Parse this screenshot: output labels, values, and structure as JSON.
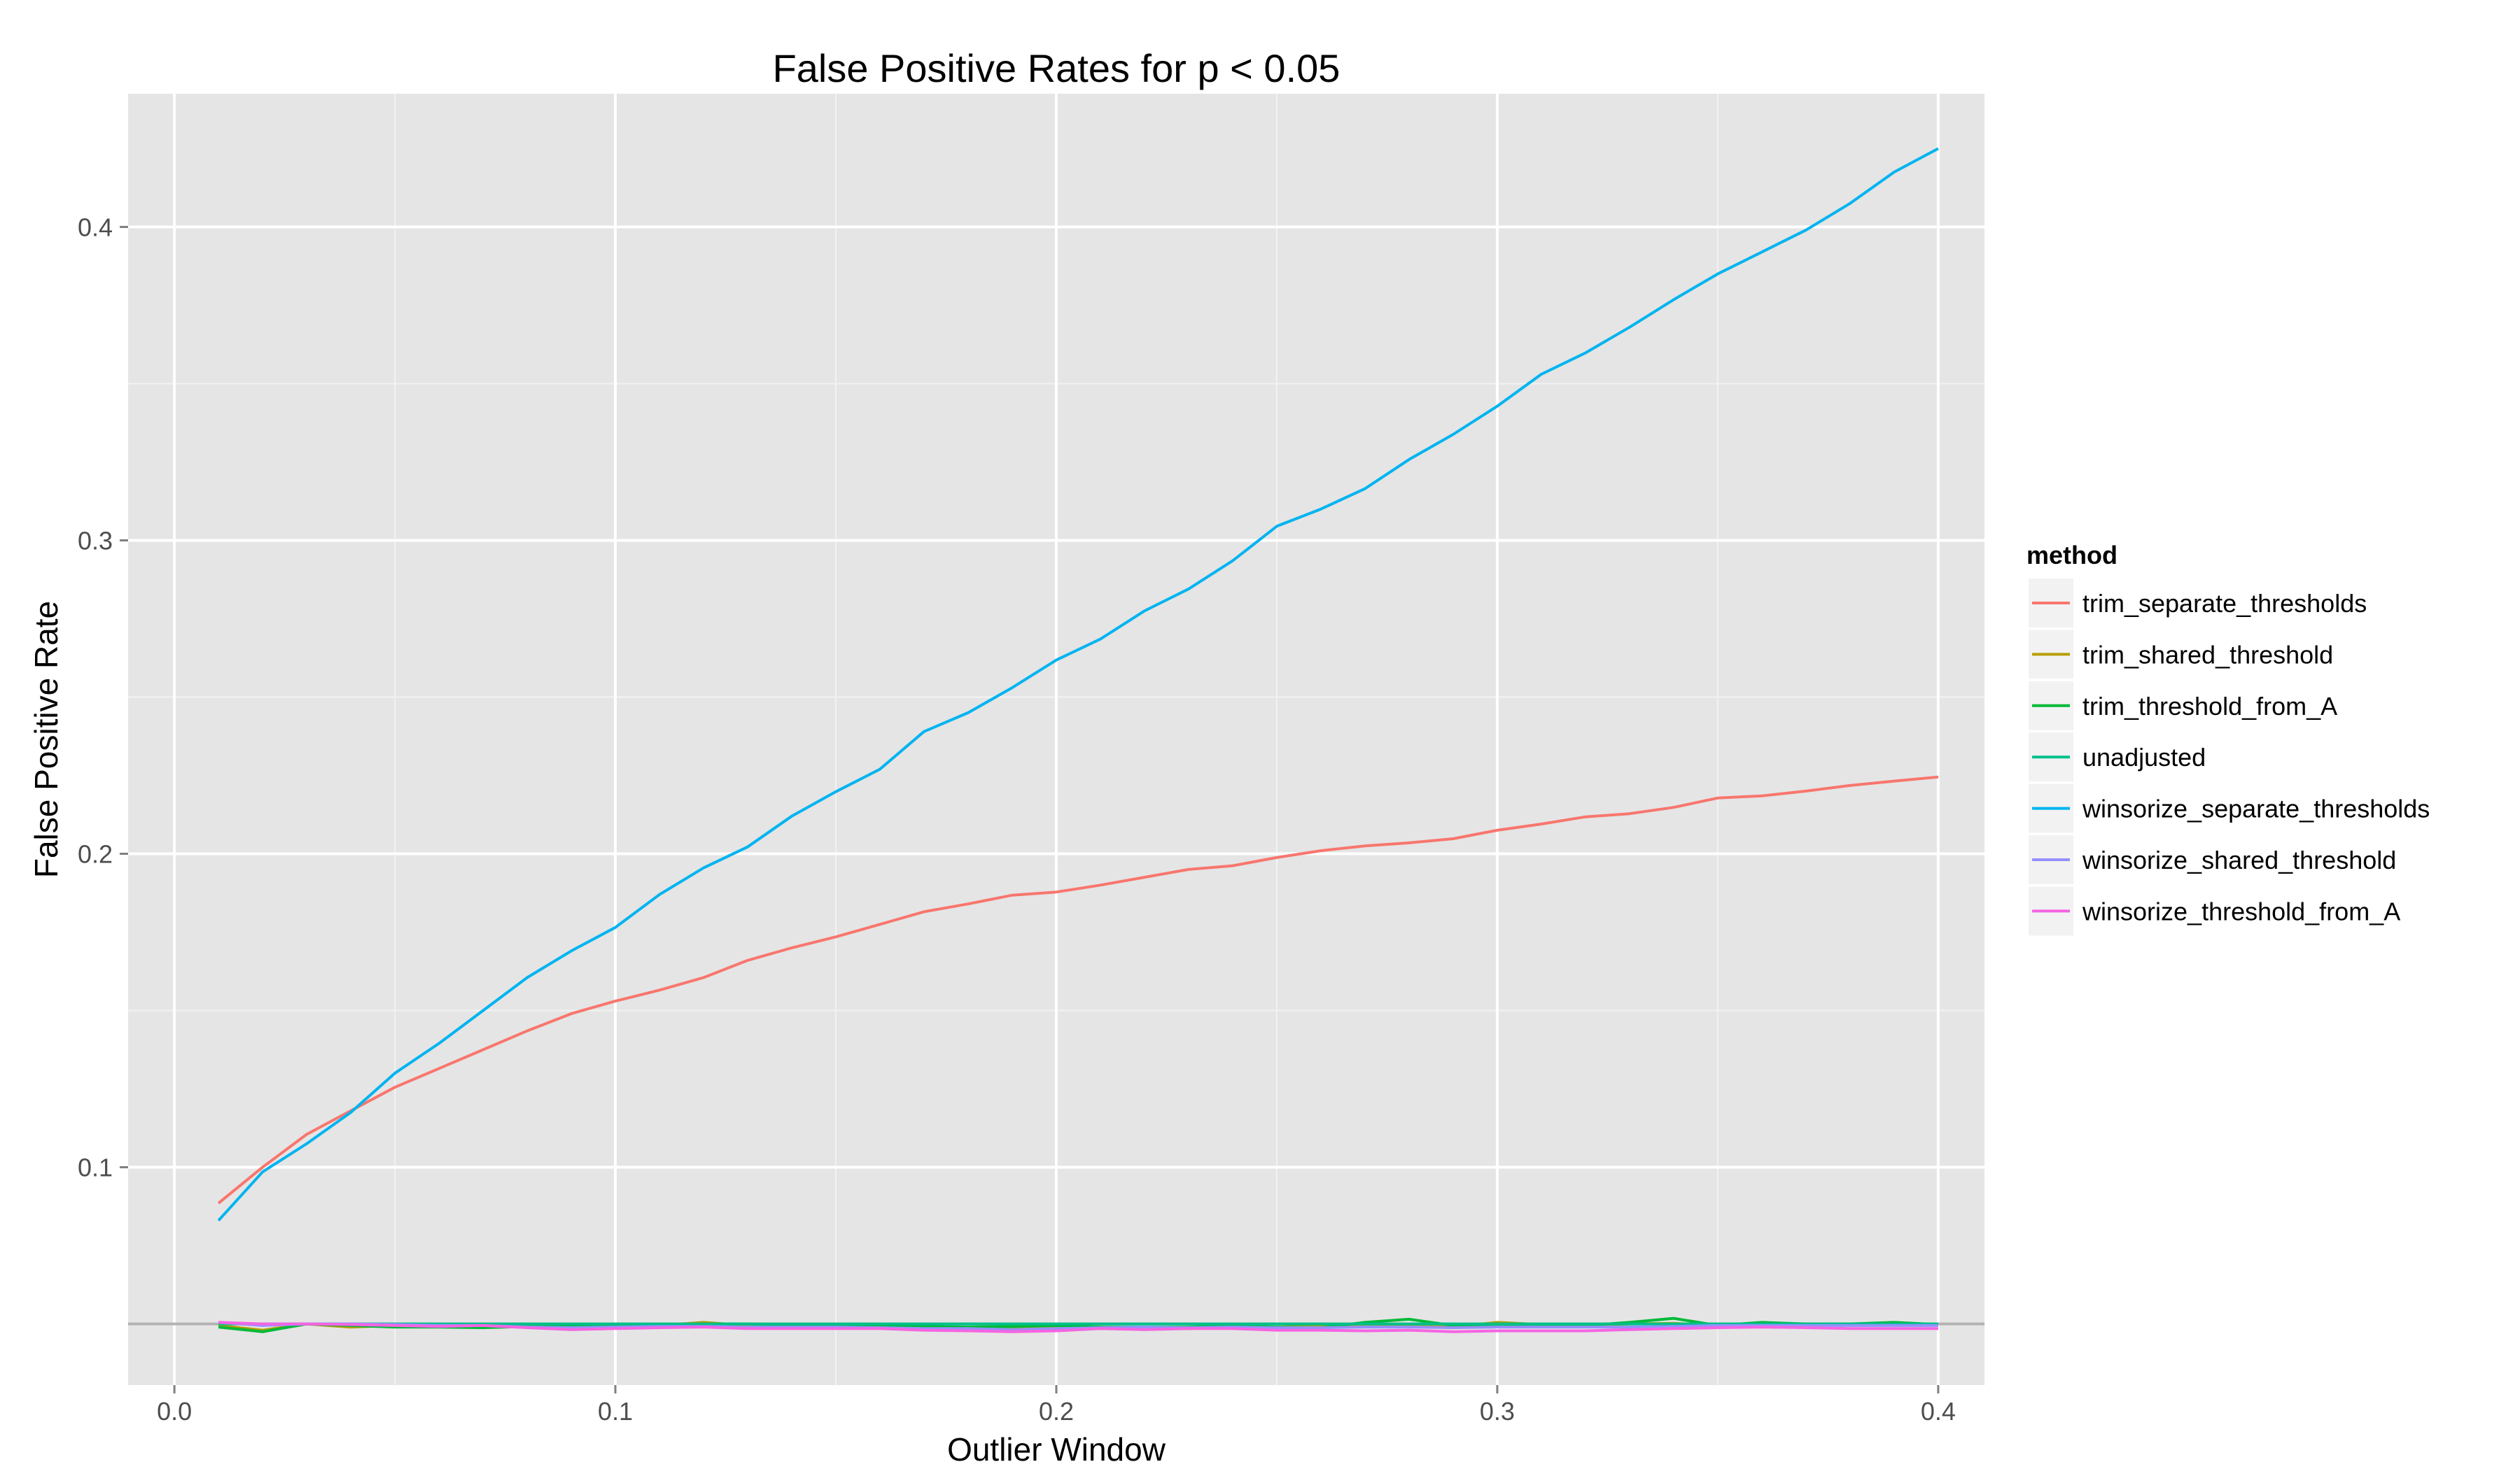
{
  "chart_data": {
    "type": "line",
    "title": "False Positive Rates for p < 0.05",
    "xlabel": "Outlier Window",
    "ylabel": "False Positive Rate",
    "xlim": [
      -0.0105,
      0.4105
    ],
    "ylim": [
      0.0305,
      0.4425
    ],
    "x_ticks": [
      0.0,
      0.1,
      0.2,
      0.3,
      0.4
    ],
    "x_tick_labels": [
      "0.0",
      "0.1",
      "0.2",
      "0.3",
      "0.4"
    ],
    "y_ticks": [
      0.1,
      0.2,
      0.3,
      0.4
    ],
    "y_tick_labels": [
      "0.1",
      "0.2",
      "0.3",
      "0.4"
    ],
    "reference_line": 0.05,
    "grid": true,
    "legend_title": "method",
    "legend_position": "right",
    "x": [
      0.01,
      0.02,
      0.03,
      0.04,
      0.05,
      0.06,
      0.07,
      0.08,
      0.09,
      0.1,
      0.11,
      0.12,
      0.13,
      0.14,
      0.15,
      0.16,
      0.17,
      0.18,
      0.19,
      0.2,
      0.21,
      0.22,
      0.23,
      0.24,
      0.25,
      0.26,
      0.27,
      0.28,
      0.29,
      0.3,
      0.31,
      0.32,
      0.33,
      0.34,
      0.35,
      0.36,
      0.37,
      0.38,
      0.39,
      0.4
    ],
    "series": [
      {
        "name": "trim_separate_thresholds",
        "color": "#F8766D",
        "values": [
          0.0885,
          0.1,
          0.1105,
          0.118,
          0.1255,
          0.1315,
          0.1375,
          0.1435,
          0.149,
          0.153,
          0.1565,
          0.1605,
          0.166,
          0.17,
          0.1735,
          0.1775,
          0.1815,
          0.184,
          0.1868,
          0.1878,
          0.19,
          0.1925,
          0.195,
          0.1962,
          0.1988,
          0.201,
          0.2025,
          0.2035,
          0.2048,
          0.2075,
          0.2095,
          0.2118,
          0.2128,
          0.2148,
          0.2178,
          0.2185,
          0.22,
          0.2218,
          0.2232,
          0.2245
        ]
      },
      {
        "name": "trim_shared_threshold",
        "color": "#B79F00",
        "values": [
          0.0495,
          0.048,
          0.05,
          0.049,
          0.0495,
          0.05,
          0.049,
          0.0495,
          0.049,
          0.0492,
          0.0495,
          0.0505,
          0.0495,
          0.0495,
          0.0492,
          0.049,
          0.049,
          0.0488,
          0.049,
          0.0492,
          0.049,
          0.0485,
          0.0485,
          0.049,
          0.049,
          0.0495,
          0.0495,
          0.0498,
          0.049,
          0.0505,
          0.0498,
          0.0495,
          0.05,
          0.0502,
          0.0495,
          0.0492,
          0.0495,
          0.0498,
          0.05,
          0.0498
        ]
      },
      {
        "name": "trim_threshold_from_A",
        "color": "#00BA38",
        "values": [
          0.049,
          0.0475,
          0.05,
          0.0495,
          0.049,
          0.049,
          0.0488,
          0.0492,
          0.0495,
          0.0495,
          0.0495,
          0.05,
          0.05,
          0.0495,
          0.0495,
          0.0495,
          0.0492,
          0.049,
          0.0492,
          0.0495,
          0.049,
          0.049,
          0.049,
          0.0495,
          0.049,
          0.0488,
          0.0505,
          0.0515,
          0.0495,
          0.0498,
          0.0498,
          0.0495,
          0.0505,
          0.0518,
          0.0495,
          0.0505,
          0.05,
          0.05,
          0.0505,
          0.0498
        ]
      },
      {
        "name": "unadjusted",
        "color": "#00C08B",
        "values": [
          0.05,
          0.05,
          0.05,
          0.05,
          0.05,
          0.05,
          0.05,
          0.05,
          0.05,
          0.05,
          0.05,
          0.05,
          0.05,
          0.05,
          0.05,
          0.05,
          0.05,
          0.05,
          0.05,
          0.05,
          0.05,
          0.05,
          0.05,
          0.05,
          0.05,
          0.05,
          0.05,
          0.05,
          0.05,
          0.05,
          0.05,
          0.05,
          0.05,
          0.05,
          0.05,
          0.05,
          0.05,
          0.05,
          0.05,
          0.05
        ]
      },
      {
        "name": "winsorize_separate_thresholds",
        "color": "#00B4F0",
        "values": [
          0.083,
          0.0985,
          0.1075,
          0.1175,
          0.13,
          0.1395,
          0.15,
          0.1605,
          0.169,
          0.1765,
          0.187,
          0.1955,
          0.2022,
          0.212,
          0.2198,
          0.227,
          0.239,
          0.245,
          0.253,
          0.2618,
          0.2685,
          0.2775,
          0.2845,
          0.2935,
          0.3045,
          0.31,
          0.3165,
          0.3258,
          0.3338,
          0.3428,
          0.353,
          0.3598,
          0.368,
          0.3768,
          0.385,
          0.392,
          0.399,
          0.4075,
          0.4175,
          0.425
        ]
      },
      {
        "name": "winsorize_shared_threshold",
        "color": "#9590FF",
        "values": [
          0.0505,
          0.0495,
          0.05,
          0.05,
          0.0498,
          0.0495,
          0.0495,
          0.049,
          0.0488,
          0.049,
          0.0492,
          0.0492,
          0.049,
          0.049,
          0.049,
          0.0488,
          0.0485,
          0.0485,
          0.0482,
          0.0485,
          0.0488,
          0.049,
          0.0488,
          0.049,
          0.0488,
          0.0488,
          0.049,
          0.049,
          0.0488,
          0.049,
          0.049,
          0.049,
          0.049,
          0.0492,
          0.0495,
          0.0495,
          0.0495,
          0.0495,
          0.0495,
          0.0495
        ]
      },
      {
        "name": "winsorize_threshold_from_A",
        "color": "#F564E3",
        "values": [
          0.0505,
          0.05,
          0.05,
          0.0498,
          0.0495,
          0.0492,
          0.0495,
          0.0488,
          0.0482,
          0.0485,
          0.0488,
          0.049,
          0.0485,
          0.0485,
          0.0485,
          0.0485,
          0.048,
          0.0478,
          0.0475,
          0.0478,
          0.0485,
          0.0482,
          0.0485,
          0.0485,
          0.048,
          0.048,
          0.0478,
          0.048,
          0.0475,
          0.0478,
          0.0478,
          0.0478,
          0.0482,
          0.0485,
          0.0488,
          0.049,
          0.0488,
          0.0485,
          0.0485,
          0.0485
        ]
      }
    ]
  }
}
